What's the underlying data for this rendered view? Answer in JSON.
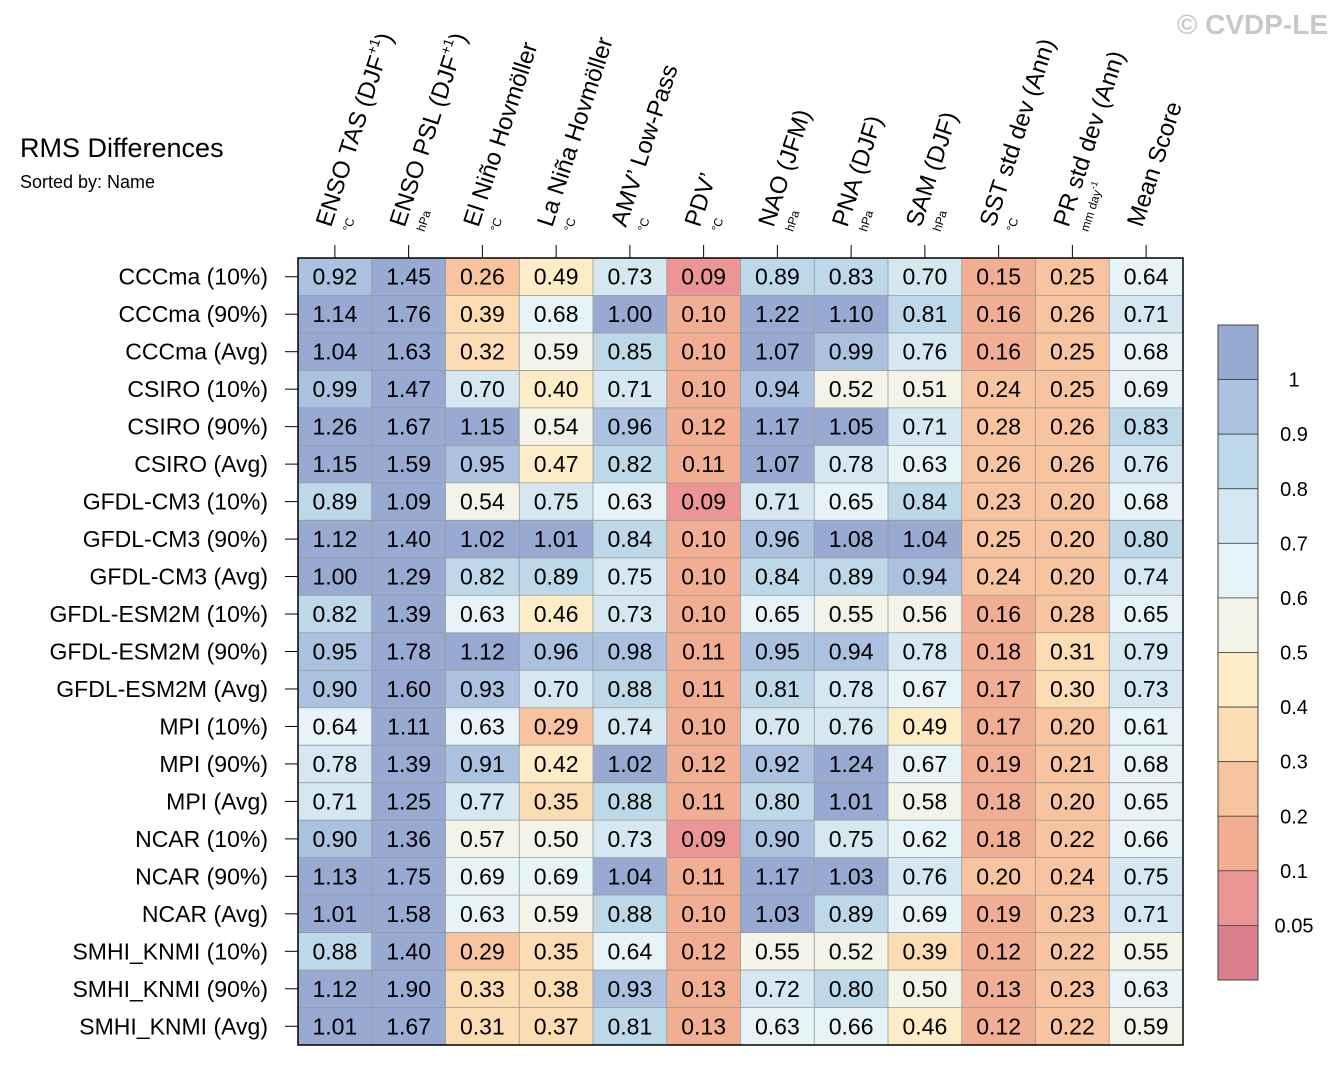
{
  "watermark": "© CVDP-LE",
  "chart_data": {
    "type": "heatmap",
    "title": "RMS Differences",
    "subtitle": "Sorted by: Name",
    "columns": [
      {
        "label": "ENSO TAS (DJF",
        "sup": "+1",
        "close": ")",
        "unit": "°C"
      },
      {
        "label": "ENSO PSL (DJF",
        "sup": "+1",
        "close": ")",
        "unit": "hPa"
      },
      {
        "label": "El Niño Hovmöller",
        "sup": "",
        "close": "",
        "unit": "°C"
      },
      {
        "label": "La Niña Hovmöller",
        "sup": "",
        "close": "",
        "unit": "°C"
      },
      {
        "label": "AMV’ Low-Pass",
        "sup": "",
        "close": "",
        "unit": "°C"
      },
      {
        "label": "PDV’",
        "sup": "",
        "close": "",
        "unit": "°C"
      },
      {
        "label": "NAO (JFM)",
        "sup": "",
        "close": "",
        "unit": "hPa"
      },
      {
        "label": "PNA (DJF)",
        "sup": "",
        "close": "",
        "unit": "hPa"
      },
      {
        "label": "SAM (DJF)",
        "sup": "",
        "close": "",
        "unit": "hPa"
      },
      {
        "label": "SST std dev (Ann)",
        "sup": "",
        "close": "",
        "unit": "°C"
      },
      {
        "label": "PR std dev (Ann)",
        "sup": "",
        "close": "",
        "unit": "mm day",
        "unit_sup": "-1"
      },
      {
        "label": "Mean Score",
        "sup": "",
        "close": "",
        "unit": ""
      }
    ],
    "rows": [
      "CCCma (10%)",
      "CCCma (90%)",
      "CCCma (Avg)",
      "CSIRO (10%)",
      "CSIRO (90%)",
      "CSIRO (Avg)",
      "GFDL-CM3 (10%)",
      "GFDL-CM3 (90%)",
      "GFDL-CM3 (Avg)",
      "GFDL-ESM2M (10%)",
      "GFDL-ESM2M (90%)",
      "GFDL-ESM2M (Avg)",
      "MPI (10%)",
      "MPI (90%)",
      "MPI (Avg)",
      "NCAR (10%)",
      "NCAR (90%)",
      "NCAR (Avg)",
      "SMHI_KNMI (10%)",
      "SMHI_KNMI (90%)",
      "SMHI_KNMI (Avg)"
    ],
    "values": [
      [
        "0.92",
        "1.45",
        "0.26",
        "0.49",
        "0.73",
        "0.09",
        "0.89",
        "0.83",
        "0.70",
        "0.15",
        "0.25",
        "0.64"
      ],
      [
        "1.14",
        "1.76",
        "0.39",
        "0.68",
        "1.00",
        "0.10",
        "1.22",
        "1.10",
        "0.81",
        "0.16",
        "0.26",
        "0.71"
      ],
      [
        "1.04",
        "1.63",
        "0.32",
        "0.59",
        "0.85",
        "0.10",
        "1.07",
        "0.99",
        "0.76",
        "0.16",
        "0.25",
        "0.68"
      ],
      [
        "0.99",
        "1.47",
        "0.70",
        "0.40",
        "0.71",
        "0.10",
        "0.94",
        "0.52",
        "0.51",
        "0.24",
        "0.25",
        "0.69"
      ],
      [
        "1.26",
        "1.67",
        "1.15",
        "0.54",
        "0.96",
        "0.12",
        "1.17",
        "1.05",
        "0.71",
        "0.28",
        "0.26",
        "0.83"
      ],
      [
        "1.15",
        "1.59",
        "0.95",
        "0.47",
        "0.82",
        "0.11",
        "1.07",
        "0.78",
        "0.63",
        "0.26",
        "0.26",
        "0.76"
      ],
      [
        "0.89",
        "1.09",
        "0.54",
        "0.75",
        "0.63",
        "0.09",
        "0.71",
        "0.65",
        "0.84",
        "0.23",
        "0.20",
        "0.68"
      ],
      [
        "1.12",
        "1.40",
        "1.02",
        "1.01",
        "0.84",
        "0.10",
        "0.96",
        "1.08",
        "1.04",
        "0.25",
        "0.20",
        "0.80"
      ],
      [
        "1.00",
        "1.29",
        "0.82",
        "0.89",
        "0.75",
        "0.10",
        "0.84",
        "0.89",
        "0.94",
        "0.24",
        "0.20",
        "0.74"
      ],
      [
        "0.82",
        "1.39",
        "0.63",
        "0.46",
        "0.73",
        "0.10",
        "0.65",
        "0.55",
        "0.56",
        "0.16",
        "0.28",
        "0.65"
      ],
      [
        "0.95",
        "1.78",
        "1.12",
        "0.96",
        "0.98",
        "0.11",
        "0.95",
        "0.94",
        "0.78",
        "0.18",
        "0.31",
        "0.79"
      ],
      [
        "0.90",
        "1.60",
        "0.93",
        "0.70",
        "0.88",
        "0.11",
        "0.81",
        "0.78",
        "0.67",
        "0.17",
        "0.30",
        "0.73"
      ],
      [
        "0.64",
        "1.11",
        "0.63",
        "0.29",
        "0.74",
        "0.10",
        "0.70",
        "0.76",
        "0.49",
        "0.17",
        "0.20",
        "0.61"
      ],
      [
        "0.78",
        "1.39",
        "0.91",
        "0.42",
        "1.02",
        "0.12",
        "0.92",
        "1.24",
        "0.67",
        "0.19",
        "0.21",
        "0.68"
      ],
      [
        "0.71",
        "1.25",
        "0.77",
        "0.35",
        "0.88",
        "0.11",
        "0.80",
        "1.01",
        "0.58",
        "0.18",
        "0.20",
        "0.65"
      ],
      [
        "0.90",
        "1.36",
        "0.57",
        "0.50",
        "0.73",
        "0.09",
        "0.90",
        "0.75",
        "0.62",
        "0.18",
        "0.22",
        "0.66"
      ],
      [
        "1.13",
        "1.75",
        "0.69",
        "0.69",
        "1.04",
        "0.11",
        "1.17",
        "1.03",
        "0.76",
        "0.20",
        "0.24",
        "0.75"
      ],
      [
        "1.01",
        "1.58",
        "0.63",
        "0.59",
        "0.88",
        "0.10",
        "1.03",
        "0.89",
        "0.69",
        "0.19",
        "0.23",
        "0.71"
      ],
      [
        "0.88",
        "1.40",
        "0.29",
        "0.35",
        "0.64",
        "0.12",
        "0.55",
        "0.52",
        "0.39",
        "0.12",
        "0.22",
        "0.55"
      ],
      [
        "1.12",
        "1.90",
        "0.33",
        "0.38",
        "0.93",
        "0.13",
        "0.72",
        "0.80",
        "0.50",
        "0.13",
        "0.23",
        "0.63"
      ],
      [
        "1.01",
        "1.67",
        "0.31",
        "0.37",
        "0.81",
        "0.13",
        "0.63",
        "0.66",
        "0.46",
        "0.12",
        "0.22",
        "0.59"
      ]
    ],
    "colorbar": {
      "boundaries": [
        1,
        0.9,
        0.8,
        0.7,
        0.6,
        0.5,
        0.4,
        0.3,
        0.2,
        0.1,
        0.05
      ],
      "labels": [
        "1",
        "0.9",
        "0.8",
        "0.7",
        "0.6",
        "0.5",
        "0.4",
        "0.3",
        "0.2",
        "0.1",
        "0.05"
      ],
      "colors": [
        "#98a9d2",
        "#aac2e0",
        "#bcd8e9",
        "#d5e8f1",
        "#e6f3f7",
        "#f4f3e7",
        "#fdedc7",
        "#fcdcb2",
        "#f8c4a0",
        "#f2ae93",
        "#eb9594",
        "#d97f8d"
      ]
    }
  }
}
